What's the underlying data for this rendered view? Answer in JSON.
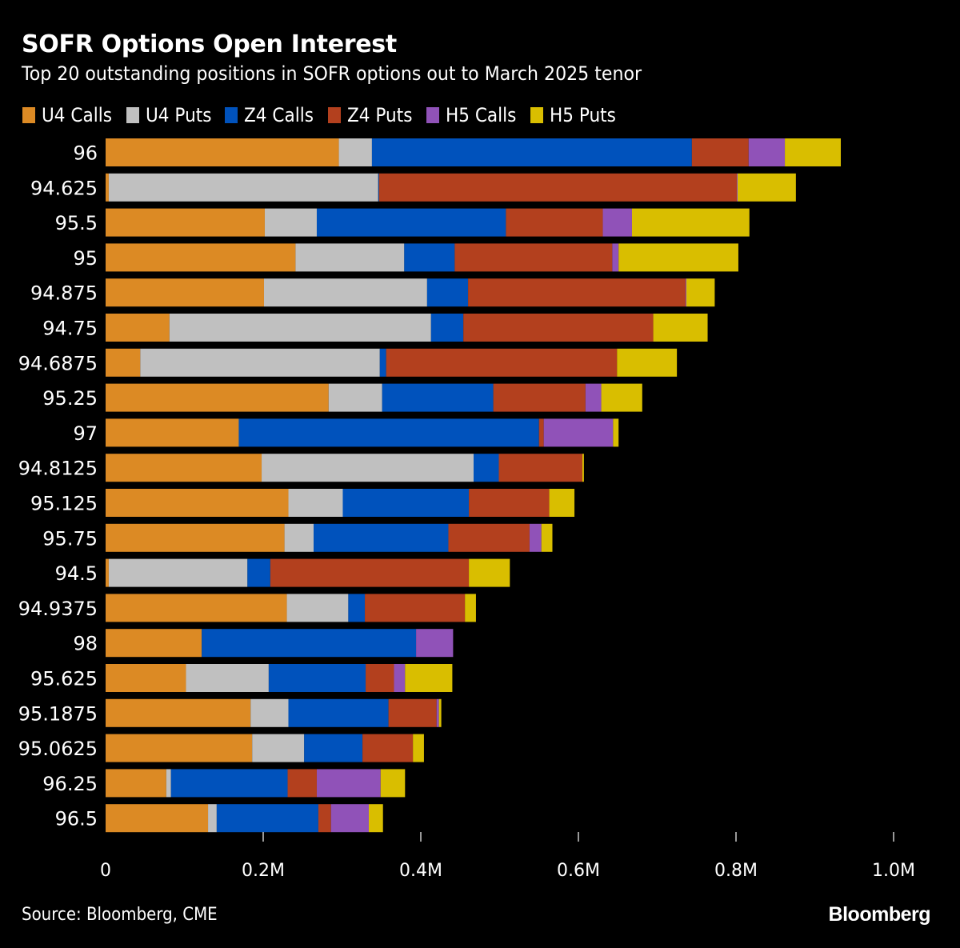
{
  "chart_data": {
    "type": "bar",
    "orientation": "horizontal",
    "stacked": true,
    "title": "SOFR Options Open Interest",
    "subtitle": "Top 20 outstanding positions in SOFR options out to March 2025 tenor",
    "xlabel": "",
    "ylabel": "",
    "xlim": [
      0,
      1000000
    ],
    "x_ticks": [
      0,
      200000,
      400000,
      600000,
      800000,
      1000000
    ],
    "x_tick_labels": [
      "0",
      "0.2M",
      "0.4M",
      "0.6M",
      "0.8M",
      "1.0M"
    ],
    "grid": false,
    "legend_position": "top-left",
    "categories": [
      "96",
      "94.625",
      "95.5",
      "95",
      "94.875",
      "94.75",
      "94.6875",
      "95.25",
      "97",
      "94.8125",
      "95.125",
      "95.75",
      "94.5",
      "94.9375",
      "98",
      "95.625",
      "95.1875",
      "95.0625",
      "96.25",
      "96.5"
    ],
    "series": [
      {
        "name": "U4 Calls",
        "color": "#DC8A24",
        "values": [
          296000,
          4000,
          202000,
          241000,
          201000,
          81000,
          44000,
          283000,
          169000,
          198000,
          232000,
          227000,
          4000,
          230000,
          122000,
          102000,
          184000,
          186000,
          77000,
          130000
        ]
      },
      {
        "name": "U4 Puts",
        "color": "#C0C0C0",
        "values": [
          42000,
          342000,
          66000,
          138000,
          207000,
          332000,
          304000,
          68000,
          0,
          269000,
          69000,
          37000,
          176000,
          78000,
          0,
          105000,
          48000,
          66000,
          6000,
          11000
        ]
      },
      {
        "name": "Z4 Calls",
        "color": "#0052BC",
        "values": [
          406000,
          1000,
          240000,
          64000,
          52000,
          41000,
          8000,
          141000,
          381000,
          32000,
          160000,
          171000,
          29000,
          21000,
          272000,
          123000,
          127000,
          74000,
          148000,
          129000
        ]
      },
      {
        "name": "Z4 Puts",
        "color": "#B3401E",
        "values": [
          72000,
          454000,
          123000,
          200000,
          276000,
          241000,
          293000,
          117000,
          6000,
          106000,
          102000,
          103000,
          252000,
          127000,
          0,
          36000,
          61000,
          64000,
          37000,
          16000
        ]
      },
      {
        "name": "H5 Calls",
        "color": "#9052B8",
        "values": [
          46000,
          1000,
          37000,
          8000,
          1000,
          0,
          0,
          20000,
          88000,
          0,
          0,
          15000,
          0,
          0,
          47000,
          14000,
          3000,
          0,
          81000,
          48000
        ]
      },
      {
        "name": "H5 Puts",
        "color": "#D9BE00",
        "values": [
          71000,
          74000,
          149000,
          152000,
          36000,
          69000,
          76000,
          52000,
          7000,
          2000,
          32000,
          14000,
          52000,
          14000,
          0,
          60000,
          3000,
          14000,
          31000,
          18000
        ]
      }
    ]
  },
  "header": {
    "title": "SOFR Options Open Interest",
    "subtitle": "Top 20 outstanding positions in SOFR options out to March 2025 tenor"
  },
  "footer": {
    "source": "Source: Bloomberg, CME",
    "brand": "Bloomberg"
  },
  "colors": {
    "background": "#000000",
    "text": "#FFFFFF"
  }
}
